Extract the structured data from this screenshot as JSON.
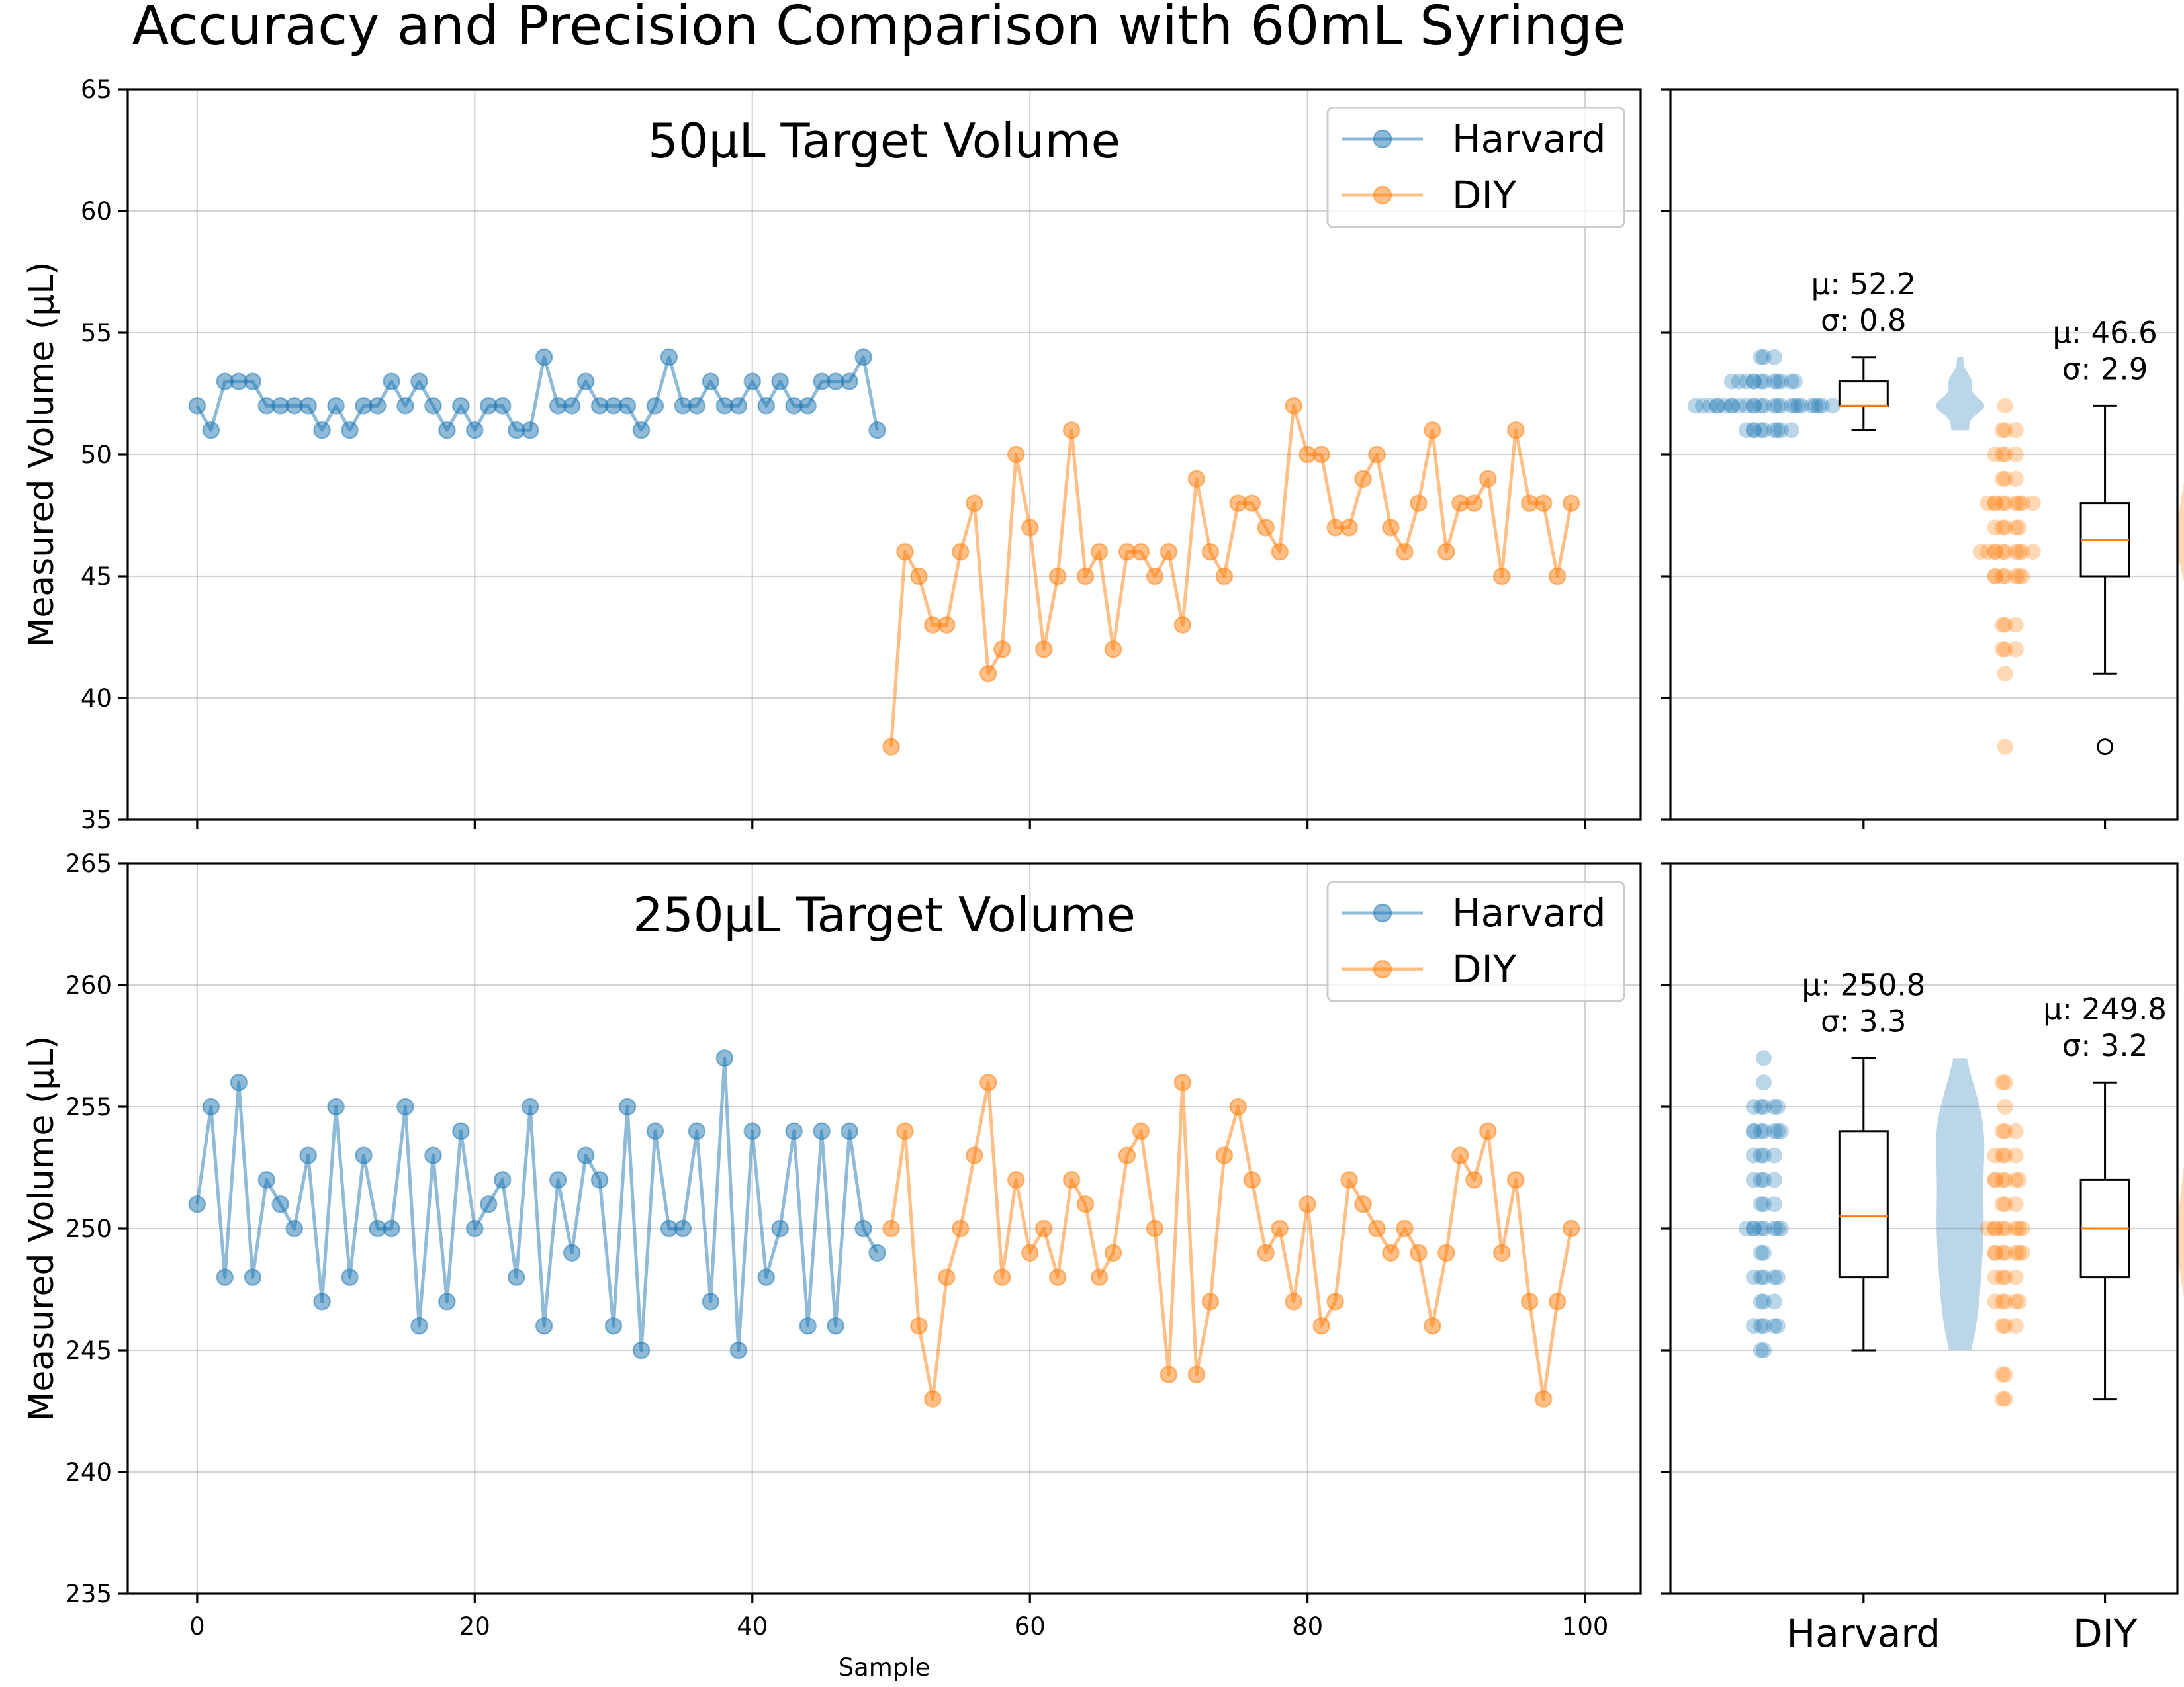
{
  "chart_data": {
    "title": "Accuracy and Precision Comparison with 60mL Syringe",
    "colors": {
      "Harvard": "#1f77b4",
      "DIY": "#ff7f0e"
    },
    "panels": [
      {
        "type": "line",
        "title": "50µL Target Volume",
        "ylabel": "Measured Volume (µL)",
        "xlabel": "",
        "ylim": [
          35,
          65
        ],
        "yticks": [
          35,
          40,
          45,
          50,
          55,
          60,
          65
        ],
        "xlim": [
          -5,
          104
        ],
        "xticks": [
          0,
          20,
          40,
          60,
          80,
          100
        ],
        "show_xtick_labels": false,
        "grid": true,
        "legend_position": "top-right",
        "series": [
          {
            "name": "Harvard",
            "x_start": 0,
            "values": [
              52,
              51,
              53,
              53,
              53,
              52,
              52,
              52,
              52,
              51,
              52,
              51,
              52,
              52,
              53,
              52,
              53,
              52,
              51,
              52,
              51,
              52,
              52,
              51,
              51,
              54,
              52,
              52,
              53,
              52,
              52,
              52,
              51,
              52,
              54,
              52,
              52,
              53,
              52,
              52,
              53,
              52,
              53,
              52,
              52,
              53,
              53,
              53,
              54,
              51
            ]
          },
          {
            "name": "DIY",
            "x_start": 50,
            "values": [
              38,
              46,
              45,
              43,
              43,
              46,
              48,
              41,
              42,
              50,
              47,
              42,
              45,
              51,
              45,
              46,
              42,
              46,
              46,
              45,
              46,
              43,
              49,
              46,
              45,
              48,
              48,
              47,
              46,
              52,
              50,
              50,
              47,
              47,
              49,
              50,
              47,
              46,
              48,
              51,
              46,
              48,
              48,
              49,
              45,
              51,
              48,
              48,
              45,
              48
            ]
          }
        ]
      },
      {
        "type": "line",
        "title": "250µL Target Volume",
        "ylabel": "Measured Volume (µL)",
        "xlabel": "Sample",
        "ylim": [
          235,
          265
        ],
        "yticks": [
          235,
          240,
          245,
          250,
          255,
          260,
          265
        ],
        "xlim": [
          -5,
          104
        ],
        "xticks": [
          0,
          20,
          40,
          60,
          80,
          100
        ],
        "show_xtick_labels": true,
        "grid": true,
        "legend_position": "top-right",
        "series": [
          {
            "name": "Harvard",
            "x_start": 0,
            "values": [
              251,
              255,
              248,
              256,
              248,
              252,
              251,
              250,
              253,
              247,
              255,
              248,
              253,
              250,
              250,
              255,
              246,
              253,
              247,
              254,
              250,
              251,
              252,
              248,
              255,
              246,
              252,
              249,
              253,
              252,
              246,
              255,
              245,
              254,
              250,
              250,
              254,
              247,
              257,
              245,
              254,
              248,
              250,
              254,
              246,
              254,
              246,
              254,
              250,
              249
            ]
          },
          {
            "name": "DIY",
            "x_start": 50,
            "values": [
              250,
              254,
              246,
              243,
              248,
              250,
              253,
              256,
              248,
              252,
              249,
              250,
              248,
              252,
              251,
              248,
              249,
              253,
              254,
              250,
              244,
              256,
              244,
              247,
              253,
              255,
              252,
              249,
              250,
              247,
              251,
              246,
              247,
              252,
              251,
              250,
              249,
              250,
              249,
              246,
              249,
              253,
              252,
              254,
              249,
              252,
              247,
              243,
              247,
              250
            ]
          }
        ]
      }
    ],
    "distribution_panels": [
      {
        "type": "box",
        "categories": [
          "Harvard",
          "DIY"
        ],
        "show_xtick_labels": false,
        "annotations": [
          {
            "series": "Harvard",
            "mu": "µ: 52.2",
            "sigma": "σ: 0.8"
          },
          {
            "series": "DIY",
            "mu": "µ: 46.6",
            "sigma": "σ: 2.9"
          }
        ],
        "boxes": [
          {
            "series": "Harvard",
            "q1": 52,
            "median": 52,
            "q3": 53,
            "whisker_low": 51,
            "whisker_high": 54,
            "fliers": []
          },
          {
            "series": "DIY",
            "q1": 45,
            "median": 46.5,
            "q3": 48,
            "whisker_low": 41,
            "whisker_high": 52,
            "fliers": [
              38
            ]
          }
        ]
      },
      {
        "type": "box",
        "categories": [
          "Harvard",
          "DIY"
        ],
        "show_xtick_labels": true,
        "annotations": [
          {
            "series": "Harvard",
            "mu": "µ: 250.8",
            "sigma": "σ: 3.3"
          },
          {
            "series": "DIY",
            "mu": "µ: 249.8",
            "sigma": "σ: 3.2"
          }
        ],
        "boxes": [
          {
            "series": "Harvard",
            "q1": 248,
            "median": 250.5,
            "q3": 254,
            "whisker_low": 245,
            "whisker_high": 257,
            "fliers": []
          },
          {
            "series": "DIY",
            "q1": 248,
            "median": 250,
            "q3": 252,
            "whisker_low": 243,
            "whisker_high": 256,
            "fliers": []
          }
        ]
      }
    ]
  }
}
